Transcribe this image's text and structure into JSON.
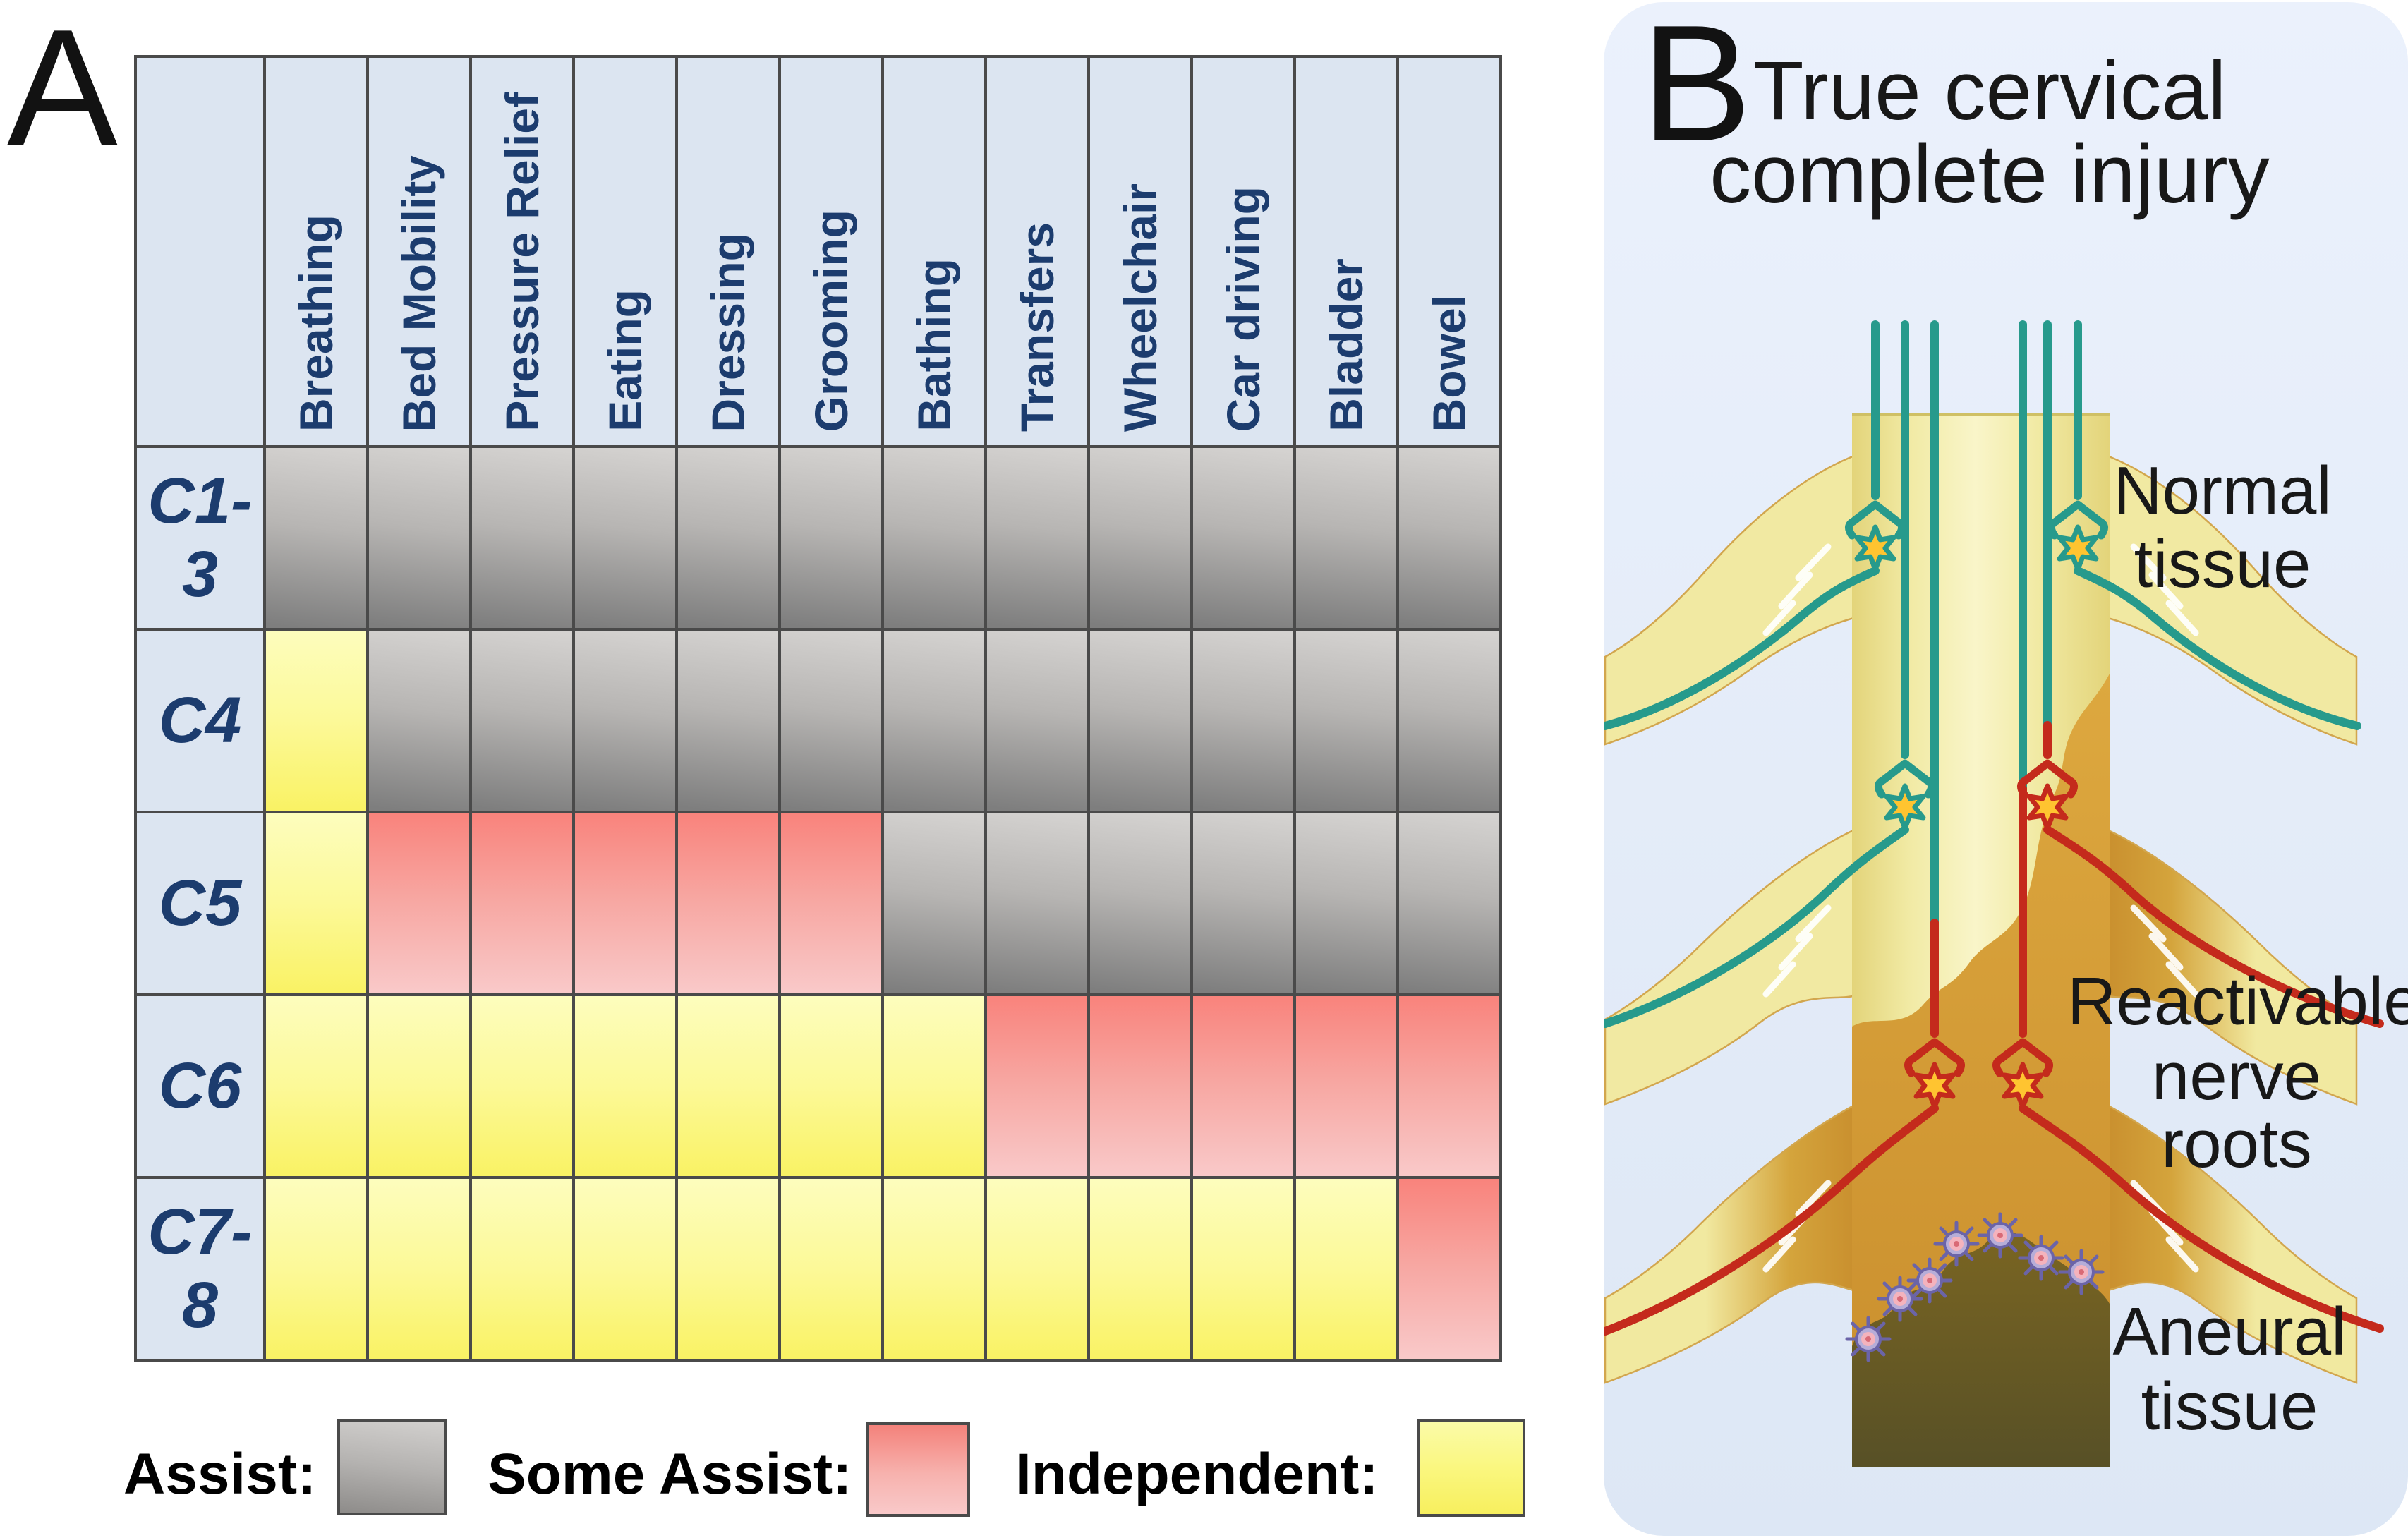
{
  "panel_a": {
    "label": "A",
    "table": {
      "column_headers": [
        "Breathing",
        "Bed Mobility",
        "Pressure Relief",
        "Eating",
        "Dressing",
        "Grooming",
        "Bathing",
        "Transfers",
        "Wheelchair",
        "Car driving",
        "Bladder",
        "Bowel"
      ],
      "rows": [
        {
          "label": "C1-3",
          "label_lines": [
            "C1-",
            "3"
          ],
          "cells": [
            "A",
            "A",
            "A",
            "A",
            "A",
            "A",
            "A",
            "A",
            "A",
            "A",
            "A",
            "A"
          ]
        },
        {
          "label": "C4",
          "label_lines": [
            "C4"
          ],
          "cells": [
            "I",
            "A",
            "A",
            "A",
            "A",
            "A",
            "A",
            "A",
            "A",
            "A",
            "A",
            "A"
          ]
        },
        {
          "label": "C5",
          "label_lines": [
            "C5"
          ],
          "cells": [
            "I",
            "S",
            "S",
            "S",
            "S",
            "S",
            "A",
            "A",
            "A",
            "A",
            "A",
            "A"
          ]
        },
        {
          "label": "C6",
          "label_lines": [
            "C6"
          ],
          "cells": [
            "I",
            "I",
            "I",
            "I",
            "I",
            "I",
            "I",
            "S",
            "S",
            "S",
            "S",
            "S"
          ]
        },
        {
          "label": "C7-8",
          "label_lines": [
            "C7-",
            "8"
          ],
          "cells": [
            "I",
            "I",
            "I",
            "I",
            "I",
            "I",
            "I",
            "I",
            "I",
            "I",
            "I",
            "S"
          ]
        }
      ],
      "cell_types": {
        "A": "assist",
        "S": "some_assist",
        "I": "independent"
      }
    },
    "legend": [
      {
        "label": "Assist:",
        "type": "assist"
      },
      {
        "label": "Some Assist:",
        "type": "some_assist"
      },
      {
        "label": "Independent:",
        "type": "independent"
      }
    ]
  },
  "panel_b": {
    "label": "B",
    "title_line1": "True cervical",
    "title_line2": "complete injury",
    "annotations": {
      "normal": {
        "line1": "Normal",
        "line2": "tissue"
      },
      "reactivable": {
        "line1": "Reactivable",
        "line2": "nerve roots"
      },
      "aneural": {
        "line1": "Aneural",
        "line2": "tissue"
      }
    }
  },
  "colors": {
    "header_bg": "#dce5f1",
    "header_text": "#1c3c6e",
    "grid_border": "#4a4a4a",
    "assist_gray_top": "#d4d2d0",
    "assist_gray_bottom": "#7e7e7e",
    "some_assist_pink_top": "#f9837c",
    "some_assist_pink_bottom": "#f9c9c9",
    "independent_yellow_top": "#fdfdbd",
    "independent_yellow_bottom": "#f9f264",
    "panel_b_bg": "#e3eaf7",
    "normal_nerve_teal": "#279a8c",
    "reactivable_nerve_red": "#c42a1c",
    "cord_yellow": "#f1eaa4",
    "injured_tissue": "#cd9430",
    "aneural_tissue": "#5a5226",
    "synapse_star": "#ffc430"
  }
}
